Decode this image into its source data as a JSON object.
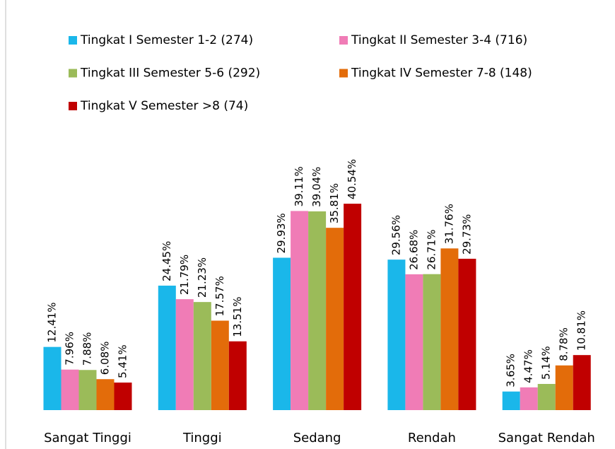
{
  "chart_data": {
    "type": "bar",
    "categories": [
      "Sangat Tinggi",
      "Tinggi",
      "Sedang",
      "Rendah",
      "Sangat Rendah"
    ],
    "series": [
      {
        "name": "Tingkat I Semester 1-2 (274)",
        "color": "#1ab7ea",
        "values": [
          12.41,
          24.45,
          29.93,
          29.56,
          3.65
        ],
        "value_labels": [
          "12.41%",
          "24.45%",
          "29.93%",
          "29.56%",
          "3.65%"
        ]
      },
      {
        "name": "Tingkat II Semester 3-4 (716)",
        "color": "#f07cb6",
        "values": [
          7.96,
          21.79,
          39.11,
          26.68,
          4.47
        ],
        "value_labels": [
          "7.96%",
          "21.79%",
          "39.11%",
          "26.68%",
          "4.47%"
        ]
      },
      {
        "name": "Tingkat III Semester 5-6 (292)",
        "color": "#9bbb59",
        "values": [
          7.88,
          21.23,
          39.04,
          26.71,
          5.14
        ],
        "value_labels": [
          "7.88%",
          "21.23%",
          "39.04%",
          "26.71%",
          "5.14%"
        ]
      },
      {
        "name": "Tingkat IV Semester 7-8 (148)",
        "color": "#e36c0a",
        "values": [
          6.08,
          17.57,
          35.81,
          31.76,
          8.78
        ],
        "value_labels": [
          "6.08%",
          "17.57%",
          "35.81%",
          "31.76%",
          "8.78%"
        ]
      },
      {
        "name": "Tingkat V Semester >8 (74)",
        "color": "#c00000",
        "values": [
          5.41,
          13.51,
          40.54,
          29.73,
          10.81
        ],
        "value_labels": [
          "5.41%",
          "13.51%",
          "40.54%",
          "29.73%",
          "10.81%"
        ]
      }
    ]
  }
}
